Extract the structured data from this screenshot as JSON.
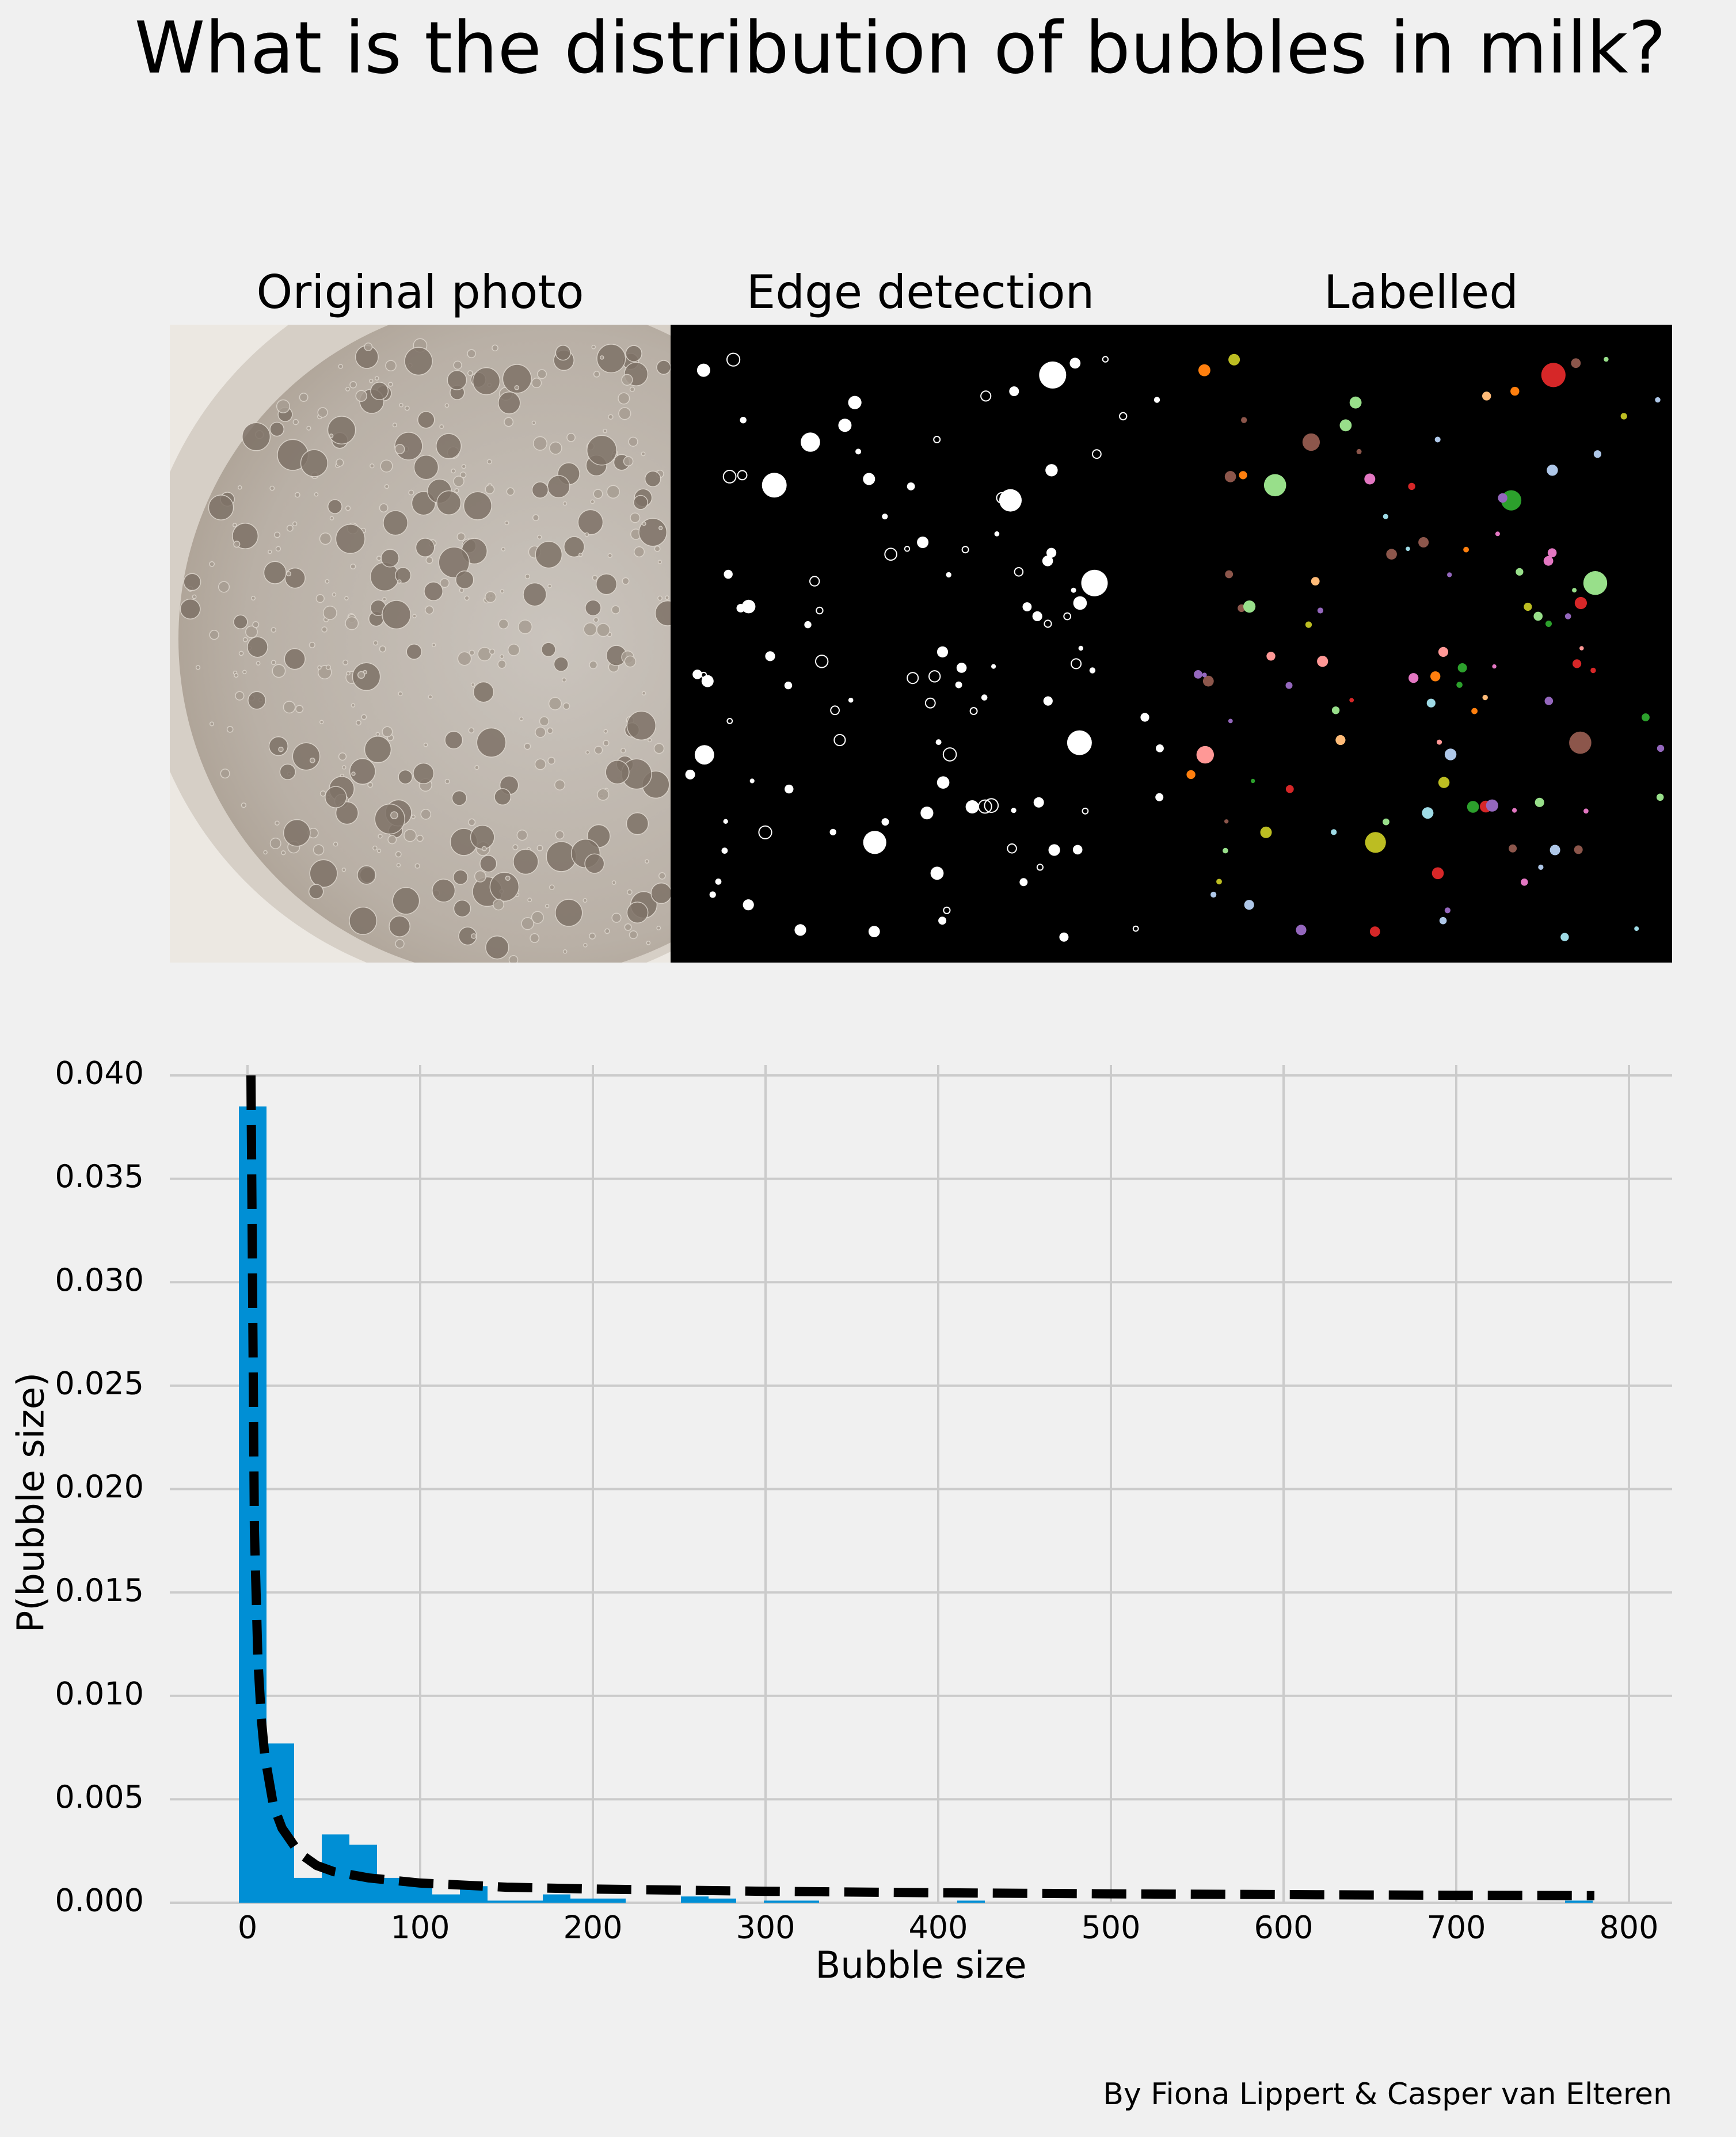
{
  "title": "What is the distribution of bubbles in milk?",
  "panels": [
    {
      "label": "Original photo"
    },
    {
      "label": "Edge detection"
    },
    {
      "label": "Labelled"
    }
  ],
  "credit": "By Fiona Lippert & Casper van Elteren",
  "colors": {
    "background": "#f0f0f0",
    "bar": "#008fd5",
    "fit_line": "#000000",
    "grid": "#cbcbcb",
    "photo_milk": "#b9b0a6",
    "photo_cup": "#ece8e2",
    "image_black": "#000000"
  },
  "chart_data": {
    "type": "bar",
    "xlabel": "Bubble size",
    "ylabel": "P(bubble size)",
    "xlim": [
      -45,
      825
    ],
    "ylim": [
      0,
      0.0405
    ],
    "xticks": [
      0,
      100,
      200,
      300,
      400,
      500,
      600,
      700,
      800
    ],
    "yticks": [
      0.0,
      0.005,
      0.01,
      0.015,
      0.02,
      0.025,
      0.03,
      0.035,
      0.04
    ],
    "xtick_labels": [
      "0",
      "100",
      "200",
      "300",
      "400",
      "500",
      "600",
      "700",
      "800"
    ],
    "ytick_labels": [
      "0.000",
      "0.005",
      "0.010",
      "0.015",
      "0.020",
      "0.025",
      "0.030",
      "0.035",
      "0.040"
    ],
    "grid": true,
    "bin_width": 16,
    "bins": [
      {
        "x0": -5,
        "y": 0.0385
      },
      {
        "x0": 11,
        "y": 0.0077
      },
      {
        "x0": 27,
        "y": 0.0012
      },
      {
        "x0": 43,
        "y": 0.0033
      },
      {
        "x0": 59,
        "y": 0.0028
      },
      {
        "x0": 75,
        "y": 0.0012
      },
      {
        "x0": 91,
        "y": 0.0008
      },
      {
        "x0": 107,
        "y": 0.0004
      },
      {
        "x0": 123,
        "y": 0.0008
      },
      {
        "x0": 139,
        "y": 0.0001
      },
      {
        "x0": 155,
        "y": 0.0001
      },
      {
        "x0": 171,
        "y": 0.0004
      },
      {
        "x0": 187,
        "y": 0.0002
      },
      {
        "x0": 203,
        "y": 0.0002
      },
      {
        "x0": 251,
        "y": 0.0003
      },
      {
        "x0": 267,
        "y": 0.0002
      },
      {
        "x0": 299,
        "y": 0.0001
      },
      {
        "x0": 315,
        "y": 0.0001
      },
      {
        "x0": 411,
        "y": 0.0001
      },
      {
        "x0": 763,
        "y": 0.0001
      }
    ],
    "fit": {
      "style": "dashed",
      "x": [
        2,
        4,
        6,
        8,
        10,
        15,
        20,
        30,
        40,
        50,
        70,
        100,
        150,
        200,
        300,
        400,
        500,
        600,
        700,
        780
      ],
      "y": [
        0.04,
        0.018,
        0.0118,
        0.0089,
        0.0071,
        0.0047,
        0.0036,
        0.0024,
        0.0018,
        0.0015,
        0.0012,
        0.00095,
        0.00075,
        0.00066,
        0.00055,
        0.00048,
        0.00043,
        0.00039,
        0.00036,
        0.00034
      ]
    }
  }
}
